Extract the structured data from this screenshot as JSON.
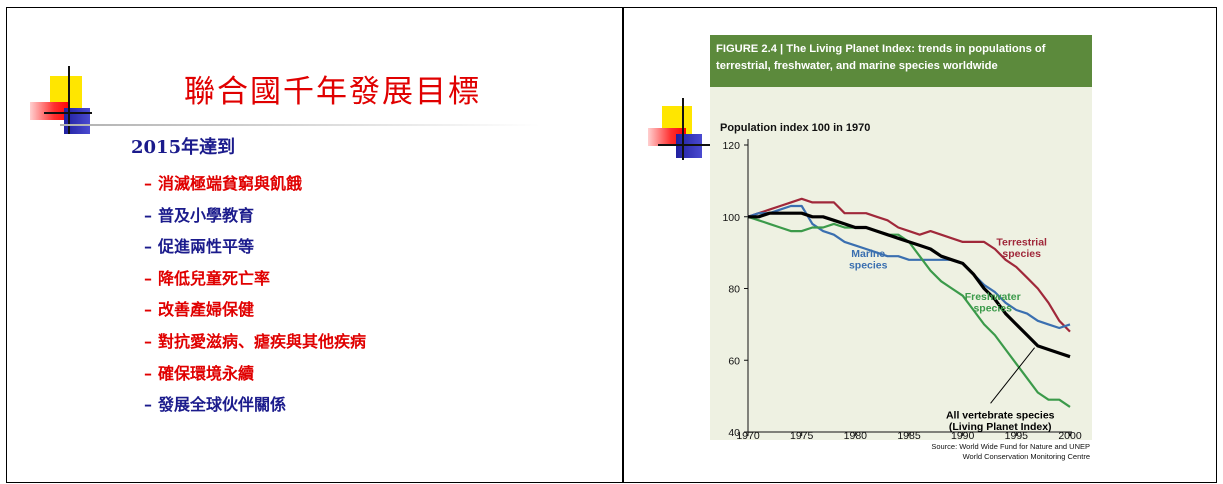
{
  "slide_left": {
    "title": "聯合國千年發展目標",
    "subheading": "2015年達到",
    "items": [
      {
        "text": "消滅極端貧窮與飢餓",
        "color": "#e00000"
      },
      {
        "text": "普及小學教育",
        "color": "#1b1b8c"
      },
      {
        "text": "促進兩性平等",
        "color": "#1b1b8c"
      },
      {
        "text": "降低兒童死亡率",
        "color": "#e00000"
      },
      {
        "text": "改善產婦保健",
        "color": "#e00000"
      },
      {
        "text": "對抗愛滋病、瘧疾與其他疾病",
        "color": "#e00000"
      },
      {
        "text": "確保環境永續",
        "color": "#e00000"
      },
      {
        "text": "發展全球伙伴關係",
        "color": "#1b1b8c"
      }
    ],
    "dash": "–"
  },
  "figure": {
    "title": "FIGURE 2.4 | The Living Planet Index: trends in populations of terrestrial, freshwater, and marine species worldwide",
    "source_line1": "Source: World Wide Fund for Nature and UNEP",
    "source_line2": "World Conservation Monitoring Centre"
  },
  "chart_data": {
    "type": "line",
    "title": "",
    "ylabel": "Population index 100 in 1970",
    "xlabel": "",
    "xlim": [
      1970,
      2000
    ],
    "ylim": [
      40,
      120
    ],
    "x_ticks": [
      1970,
      1975,
      1980,
      1985,
      1990,
      1995,
      2000
    ],
    "y_ticks": [
      40,
      60,
      80,
      100,
      120
    ],
    "grid": false,
    "series": [
      {
        "name": "Terrestrial species",
        "color": "#a0283a",
        "x": [
          1970,
          1971,
          1972,
          1973,
          1974,
          1975,
          1976,
          1977,
          1978,
          1979,
          1980,
          1981,
          1982,
          1983,
          1984,
          1985,
          1986,
          1987,
          1988,
          1989,
          1990,
          1991,
          1992,
          1993,
          1994,
          1995,
          1996,
          1997,
          1998,
          1999,
          2000
        ],
        "values": [
          100,
          101,
          102,
          103,
          104,
          105,
          104,
          104,
          104,
          101,
          101,
          101,
          100,
          99,
          97,
          96,
          95,
          96,
          95,
          94,
          93,
          93,
          93,
          91,
          88,
          86,
          83,
          80,
          76,
          71,
          68
        ]
      },
      {
        "name": "Marine species",
        "color": "#3a6fb0",
        "x": [
          1970,
          1971,
          1972,
          1973,
          1974,
          1975,
          1976,
          1977,
          1978,
          1979,
          1980,
          1981,
          1982,
          1983,
          1984,
          1985,
          1986,
          1987,
          1988,
          1989,
          1990,
          1991,
          1992,
          1993,
          1994,
          1995,
          1996,
          1997,
          1998,
          1999,
          2000
        ],
        "values": [
          100,
          101,
          101,
          102,
          103,
          103,
          98,
          96,
          95,
          93,
          92,
          91,
          90,
          89,
          89,
          88,
          88,
          88,
          88,
          88,
          87,
          84,
          81,
          79,
          76,
          74,
          73,
          71,
          70,
          69,
          70
        ]
      },
      {
        "name": "Freshwater species",
        "color": "#3b9a4a",
        "x": [
          1970,
          1971,
          1972,
          1973,
          1974,
          1975,
          1976,
          1977,
          1978,
          1979,
          1980,
          1981,
          1982,
          1983,
          1984,
          1985,
          1986,
          1987,
          1988,
          1989,
          1990,
          1991,
          1992,
          1993,
          1994,
          1995,
          1996,
          1997,
          1998,
          1999,
          2000
        ],
        "values": [
          100,
          99,
          98,
          97,
          96,
          96,
          97,
          97,
          98,
          97,
          97,
          97,
          96,
          95,
          95,
          93,
          89,
          85,
          82,
          80,
          78,
          74,
          70,
          67,
          63,
          59,
          55,
          51,
          49,
          49,
          47
        ]
      },
      {
        "name": "All vertebrate species (Living Planet Index)",
        "color": "#000000",
        "x": [
          1970,
          1971,
          1972,
          1973,
          1974,
          1975,
          1976,
          1977,
          1978,
          1979,
          1980,
          1981,
          1982,
          1983,
          1984,
          1985,
          1986,
          1987,
          1988,
          1989,
          1990,
          1991,
          1992,
          1993,
          1994,
          1995,
          1996,
          1997,
          1998,
          1999,
          2000
        ],
        "values": [
          100,
          100,
          101,
          101,
          101,
          101,
          100,
          100,
          99,
          98,
          97,
          97,
          96,
          95,
          94,
          93,
          92,
          91,
          89,
          88,
          87,
          84,
          80,
          77,
          73,
          70,
          67,
          64,
          63,
          62,
          61
        ]
      }
    ],
    "annotations": [
      {
        "lines": [
          "Terrestrial",
          "species"
        ],
        "color": "#a0283a",
        "x": 1995.5,
        "y": 92,
        "anchor": "middle"
      },
      {
        "lines": [
          "Marine",
          "species"
        ],
        "color": "#3a6fb0",
        "x": 1981.2,
        "y": 88.8,
        "anchor": "middle"
      },
      {
        "lines": [
          "Freshwater",
          "species"
        ],
        "color": "#3b9a4a",
        "x": 1992.8,
        "y": 76.8,
        "anchor": "middle"
      },
      {
        "lines": [
          "All vertebrate species",
          "(Living Planet Index)"
        ],
        "color": "#000000",
        "x": 1993.5,
        "y": 43.8,
        "anchor": "middle"
      }
    ]
  }
}
